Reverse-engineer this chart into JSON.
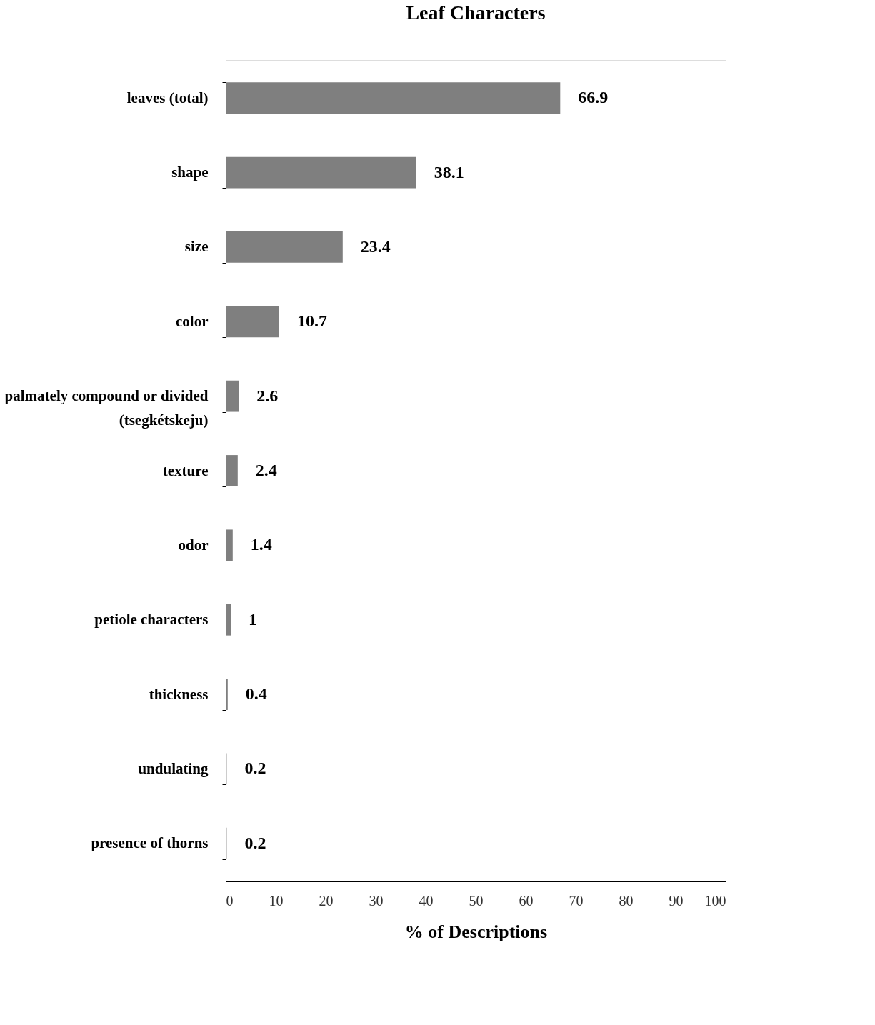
{
  "chart_data": {
    "type": "bar",
    "orientation": "horizontal",
    "title": "Leaf Characters",
    "xlabel": "% of Descriptions",
    "categories": [
      "leaves (total)",
      "shape",
      "size",
      "color",
      "palmately compound or divided (tsegkétskeju)",
      "texture",
      "odor",
      "petiole characters",
      "thickness",
      "undulating",
      "presence of thorns"
    ],
    "values": [
      66.9,
      38.1,
      23.4,
      10.7,
      2.6,
      2.4,
      1.4,
      1,
      0.4,
      0.2,
      0.2
    ],
    "color": "#7f7f7f",
    "xlim": [
      0,
      100
    ],
    "xticks": [
      0,
      10,
      20,
      30,
      40,
      50,
      60,
      70,
      80,
      90,
      100
    ],
    "grid": "x",
    "data_labels": true
  }
}
